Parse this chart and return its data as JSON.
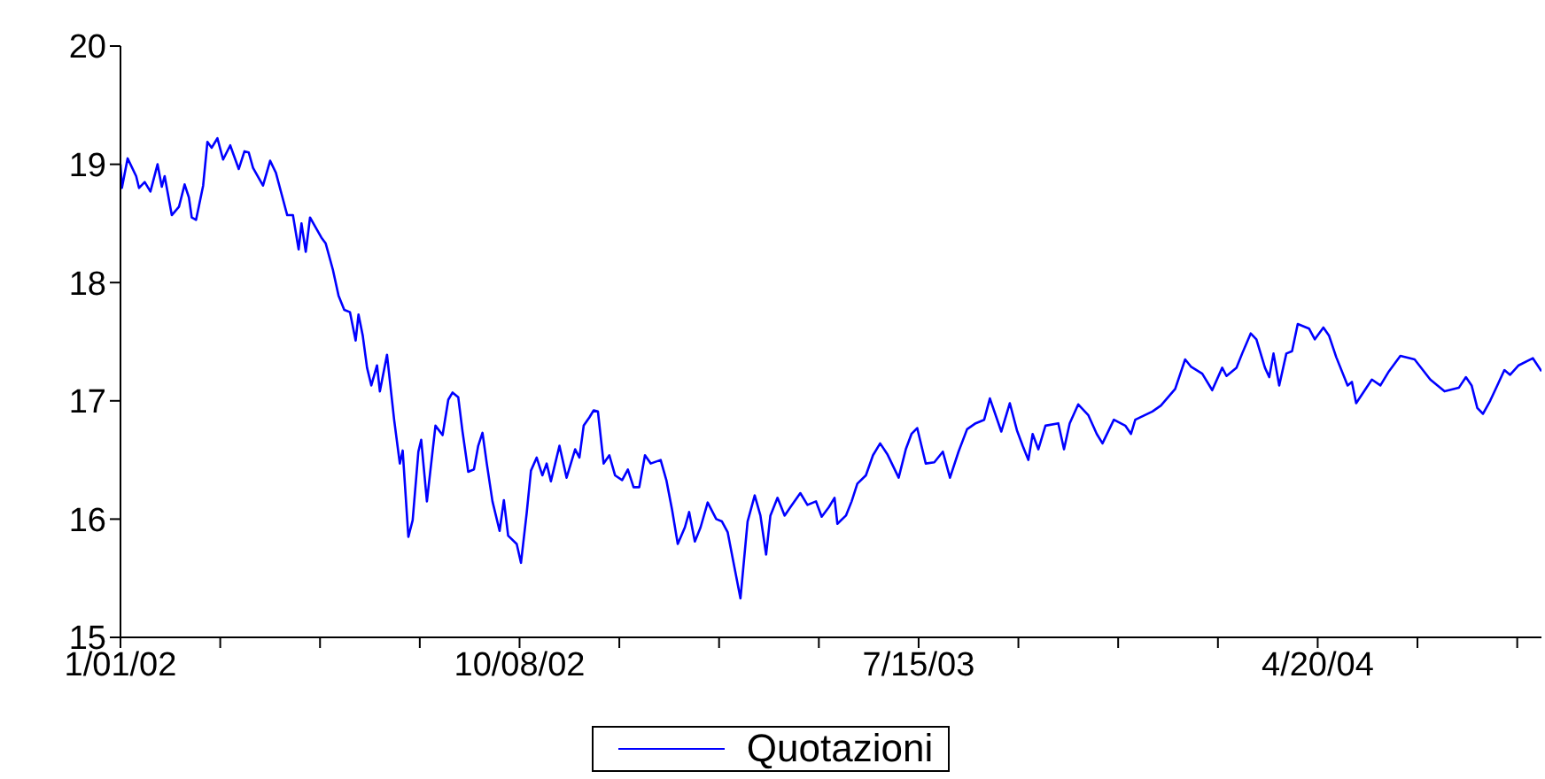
{
  "chart_data": {
    "type": "line",
    "legend": "bottom",
    "grid": false,
    "marker": "none",
    "line_style": "solid",
    "xlim": [
      "2002-01-01",
      "2004-09-24"
    ],
    "xticks": [
      {
        "value": "2002-01-01",
        "label": "1/01/02"
      },
      {
        "value": "2002-03-12",
        "label": null
      },
      {
        "value": "2002-05-21",
        "label": null
      },
      {
        "value": "2002-07-30",
        "label": null
      },
      {
        "value": "2002-10-08",
        "label": "10/08/02"
      },
      {
        "value": "2002-12-17",
        "label": null
      },
      {
        "value": "2003-02-25",
        "label": null
      },
      {
        "value": "2003-05-06",
        "label": null
      },
      {
        "value": "2003-07-15",
        "label": "7/15/03"
      },
      {
        "value": "2003-09-23",
        "label": null
      },
      {
        "value": "2003-12-02",
        "label": null
      },
      {
        "value": "2004-02-10",
        "label": null
      },
      {
        "value": "2004-04-20",
        "label": "4/20/04"
      },
      {
        "value": "2004-06-29",
        "label": null
      },
      {
        "value": "2004-09-07",
        "label": null
      }
    ],
    "ylim": [
      15,
      20
    ],
    "yticks": [
      15,
      16,
      17,
      18,
      19,
      20
    ],
    "x": [
      "2002-01-01",
      "2002-01-02",
      "2002-01-06",
      "2002-01-12",
      "2002-01-14",
      "2002-01-18",
      "2002-01-22",
      "2002-01-27",
      "2002-01-30",
      "2002-02-01",
      "2002-02-06",
      "2002-02-11",
      "2002-02-15",
      "2002-02-18",
      "2002-02-20",
      "2002-02-23",
      "2002-02-28",
      "2002-03-03",
      "2002-03-06",
      "2002-03-10",
      "2002-03-14",
      "2002-03-19",
      "2002-03-25",
      "2002-03-29",
      "2002-04-01",
      "2002-04-04",
      "2002-04-11",
      "2002-04-16",
      "2002-04-20",
      "2002-04-24",
      "2002-04-28",
      "2002-05-02",
      "2002-05-06",
      "2002-05-08",
      "2002-05-11",
      "2002-05-14",
      "2002-05-22",
      "2002-05-25",
      "2002-05-30",
      "2002-06-03",
      "2002-06-07",
      "2002-06-11",
      "2002-06-15",
      "2002-06-17",
      "2002-06-20",
      "2002-06-23",
      "2002-06-26",
      "2002-06-30",
      "2002-07-02",
      "2002-07-07",
      "2002-07-12",
      "2002-07-16",
      "2002-07-18",
      "2002-07-22",
      "2002-07-25",
      "2002-07-29",
      "2002-07-31",
      "2002-08-04",
      "2002-08-10",
      "2002-08-15",
      "2002-08-19",
      "2002-08-22",
      "2002-08-26",
      "2002-08-29",
      "2002-09-02",
      "2002-09-06",
      "2002-09-09",
      "2002-09-12",
      "2002-09-15",
      "2002-09-19",
      "2002-09-24",
      "2002-09-27",
      "2002-09-30",
      "2002-10-06",
      "2002-10-09",
      "2002-10-13",
      "2002-10-16",
      "2002-10-20",
      "2002-10-24",
      "2002-10-27",
      "2002-10-30",
      "2002-11-05",
      "2002-11-10",
      "2002-11-16",
      "2002-11-19",
      "2002-11-22",
      "2002-11-26",
      "2002-11-29",
      "2002-12-02",
      "2002-12-06",
      "2002-12-10",
      "2002-12-14",
      "2002-12-19",
      "2002-12-23",
      "2002-12-27",
      "2002-12-31",
      "2003-01-04",
      "2003-01-08",
      "2003-01-15",
      "2003-01-19",
      "2003-01-23",
      "2003-01-27",
      "2003-02-01",
      "2003-02-04",
      "2003-02-08",
      "2003-02-12",
      "2003-02-17",
      "2003-02-23",
      "2003-02-27",
      "2003-03-03",
      "2003-03-07",
      "2003-03-12",
      "2003-03-17",
      "2003-03-22",
      "2003-03-26",
      "2003-03-30",
      "2003-04-02",
      "2003-04-07",
      "2003-04-12",
      "2003-04-16",
      "2003-04-23",
      "2003-04-28",
      "2003-05-04",
      "2003-05-08",
      "2003-05-13",
      "2003-05-17",
      "2003-05-19",
      "2003-05-25",
      "2003-05-29",
      "2003-06-02",
      "2003-06-08",
      "2003-06-13",
      "2003-06-18",
      "2003-06-23",
      "2003-07-01",
      "2003-07-06",
      "2003-07-10",
      "2003-07-14",
      "2003-07-20",
      "2003-07-26",
      "2003-08-01",
      "2003-08-06",
      "2003-08-12",
      "2003-08-18",
      "2003-08-24",
      "2003-08-30",
      "2003-09-03",
      "2003-09-11",
      "2003-09-17",
      "2003-09-22",
      "2003-09-26",
      "2003-09-30",
      "2003-10-03",
      "2003-10-07",
      "2003-10-12",
      "2003-10-21",
      "2003-10-25",
      "2003-10-29",
      "2003-11-04",
      "2003-11-11",
      "2003-11-17",
      "2003-11-21",
      "2003-11-29",
      "2003-12-07",
      "2003-12-11",
      "2003-12-14",
      "2003-12-26",
      "2004-01-01",
      "2004-01-11",
      "2004-01-18",
      "2004-01-22",
      "2004-01-30",
      "2004-02-06",
      "2004-02-13",
      "2004-02-16",
      "2004-02-23",
      "2004-02-27",
      "2004-03-04",
      "2004-03-08",
      "2004-03-14",
      "2004-03-17",
      "2004-03-20",
      "2004-03-24",
      "2004-03-29",
      "2004-04-02",
      "2004-04-06",
      "2004-04-14",
      "2004-04-18",
      "2004-04-24",
      "2004-04-28",
      "2004-05-03",
      "2004-05-11",
      "2004-05-14",
      "2004-05-17",
      "2004-05-28",
      "2004-06-03",
      "2004-06-09",
      "2004-06-17",
      "2004-06-27",
      "2004-07-08",
      "2004-07-18",
      "2004-07-28",
      "2004-08-02",
      "2004-08-06",
      "2004-08-10",
      "2004-08-14",
      "2004-08-19",
      "2004-08-24",
      "2004-08-29",
      "2004-09-02",
      "2004-09-08",
      "2004-09-18",
      "2004-09-24"
    ],
    "series": [
      {
        "name": "Quotazioni",
        "color": "#0000ff",
        "values": [
          19.0,
          18.8,
          19.05,
          18.9,
          18.8,
          18.85,
          18.77,
          19.0,
          18.81,
          18.9,
          18.57,
          18.64,
          18.83,
          18.72,
          18.55,
          18.53,
          18.82,
          19.19,
          19.14,
          19.22,
          19.04,
          19.16,
          18.96,
          19.11,
          19.1,
          18.97,
          18.82,
          19.03,
          18.93,
          18.75,
          18.57,
          18.57,
          18.28,
          18.5,
          18.26,
          18.55,
          18.38,
          18.33,
          18.11,
          17.89,
          17.77,
          17.75,
          17.51,
          17.73,
          17.55,
          17.28,
          17.13,
          17.3,
          17.08,
          17.39,
          16.84,
          16.47,
          16.58,
          15.85,
          15.99,
          16.57,
          16.67,
          16.15,
          16.79,
          16.71,
          17.01,
          17.07,
          17.03,
          16.74,
          16.4,
          16.42,
          16.62,
          16.73,
          16.47,
          16.15,
          15.9,
          16.16,
          15.86,
          15.79,
          15.63,
          16.05,
          16.41,
          16.52,
          16.37,
          16.47,
          16.32,
          16.62,
          16.35,
          16.59,
          16.52,
          16.79,
          16.86,
          16.92,
          16.91,
          16.47,
          16.54,
          16.37,
          16.33,
          16.42,
          16.27,
          16.27,
          16.54,
          16.47,
          16.5,
          16.33,
          16.08,
          15.79,
          15.93,
          16.06,
          15.81,
          15.93,
          16.14,
          16.0,
          15.98,
          15.89,
          15.64,
          15.33,
          15.98,
          16.2,
          16.03,
          15.7,
          16.03,
          16.18,
          16.03,
          16.1,
          16.22,
          16.12,
          16.15,
          16.02,
          16.1,
          16.18,
          15.96,
          16.03,
          16.15,
          16.3,
          16.37,
          16.54,
          16.64,
          16.55,
          16.35,
          16.59,
          16.72,
          16.77,
          16.47,
          16.48,
          16.57,
          16.35,
          16.57,
          16.76,
          16.81,
          16.84,
          17.02,
          16.74,
          16.98,
          16.75,
          16.62,
          16.5,
          16.72,
          16.59,
          16.79,
          16.81,
          16.59,
          16.81,
          16.97,
          16.88,
          16.72,
          16.64,
          16.84,
          16.79,
          16.72,
          16.84,
          16.91,
          16.96,
          17.1,
          17.35,
          17.29,
          17.23,
          17.09,
          17.28,
          17.21,
          17.28,
          17.4,
          17.57,
          17.52,
          17.28,
          17.2,
          17.4,
          17.13,
          17.4,
          17.42,
          17.65,
          17.61,
          17.52,
          17.62,
          17.55,
          17.37,
          17.13,
          17.16,
          16.98,
          17.18,
          17.13,
          17.25,
          17.38,
          17.35,
          17.18,
          17.08,
          17.11,
          17.2,
          17.13,
          16.94,
          16.89,
          17.0,
          17.13,
          17.26,
          17.22,
          17.3,
          17.36,
          17.25
        ]
      }
    ]
  }
}
